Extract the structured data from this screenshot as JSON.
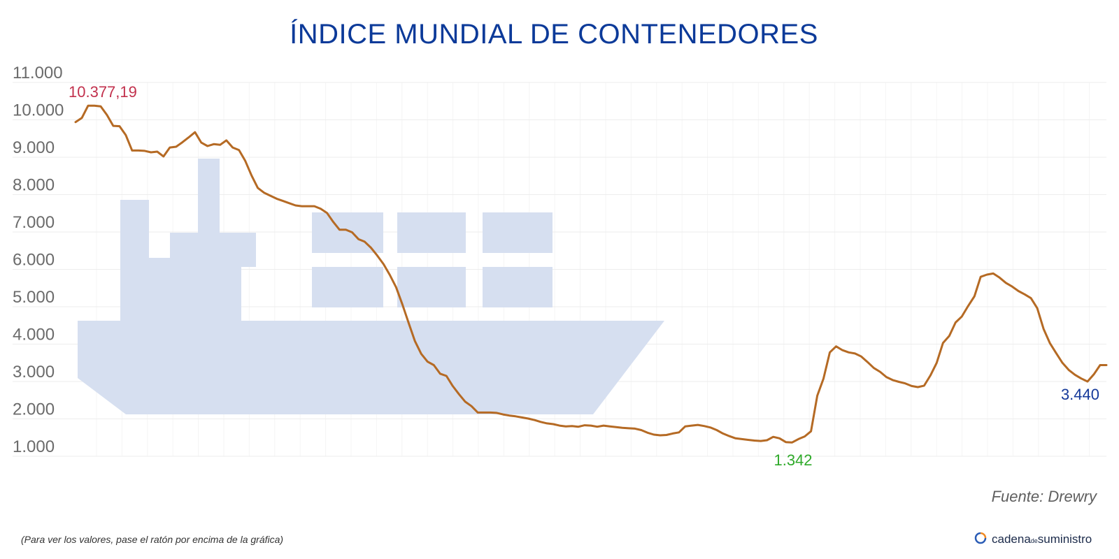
{
  "chart_data": {
    "type": "line",
    "title": "ÍNDICE MUNDIAL DE CONTENEDORES",
    "xlabel": "",
    "ylabel": "",
    "ylim": [
      1000,
      11000
    ],
    "yticks": [
      1000,
      2000,
      3000,
      4000,
      5000,
      6000,
      7000,
      8000,
      9000,
      10000,
      11000
    ],
    "ytick_labels": [
      "1.000",
      "2.000",
      "3.000",
      "4.000",
      "5.000",
      "6.000",
      "7.000",
      "8.000",
      "9.000",
      "10.000",
      "11.000"
    ],
    "grid": true,
    "series": [
      {
        "color": "#b56a24",
        "values": [
          9940,
          10050,
          10380,
          10377,
          10360,
          10130,
          9840,
          9830,
          9590,
          9180,
          9180,
          9170,
          9130,
          9150,
          9020,
          9260,
          9280,
          9400,
          9530,
          9670,
          9390,
          9300,
          9350,
          9330,
          9450,
          9260,
          9190,
          8900,
          8510,
          8180,
          8050,
          7970,
          7890,
          7830,
          7770,
          7710,
          7690,
          7690,
          7690,
          7620,
          7510,
          7270,
          7060,
          7060,
          6990,
          6810,
          6740,
          6580,
          6370,
          6140,
          5850,
          5520,
          5060,
          4560,
          4080,
          3740,
          3530,
          3440,
          3210,
          3150,
          2880,
          2660,
          2460,
          2340,
          2170,
          2170,
          2170,
          2160,
          2120,
          2090,
          2070,
          2040,
          2010,
          1970,
          1920,
          1880,
          1860,
          1820,
          1800,
          1810,
          1790,
          1830,
          1820,
          1790,
          1820,
          1800,
          1780,
          1760,
          1750,
          1740,
          1700,
          1630,
          1580,
          1560,
          1570,
          1610,
          1640,
          1800,
          1820,
          1840,
          1810,
          1770,
          1700,
          1610,
          1540,
          1480,
          1460,
          1440,
          1420,
          1410,
          1430,
          1520,
          1480,
          1380,
          1370,
          1460,
          1530,
          1670,
          2620,
          3080,
          3780,
          3940,
          3840,
          3780,
          3750,
          3670,
          3520,
          3360,
          3260,
          3120,
          3040,
          2990,
          2950,
          2880,
          2850,
          2890,
          3160,
          3500,
          4030,
          4220,
          4580,
          4740,
          5020,
          5280,
          5800,
          5860,
          5890,
          5780,
          5640,
          5540,
          5420,
          5330,
          5230,
          4960,
          4410,
          4030,
          3760,
          3500,
          3310,
          3180,
          3080,
          3000,
          3190,
          3440,
          3440
        ]
      }
    ],
    "annotations": [
      {
        "text": "10.377,19",
        "kind": "max"
      },
      {
        "text": "1.342",
        "kind": "min"
      },
      {
        "text": "3.440",
        "kind": "last"
      }
    ]
  },
  "source": "Fuente: Drewry",
  "note": "(Para ver los valores, pase el ratón por encima de la gráfica)",
  "logo": {
    "part1": "cadena",
    "part2": "de",
    "part3": "suministro"
  },
  "colors": {
    "title": "#0c3a99",
    "line": "#b56a24",
    "max": "#c2314d",
    "min": "#2faa2a",
    "last": "#15399a",
    "ship": "#d6dff0"
  }
}
